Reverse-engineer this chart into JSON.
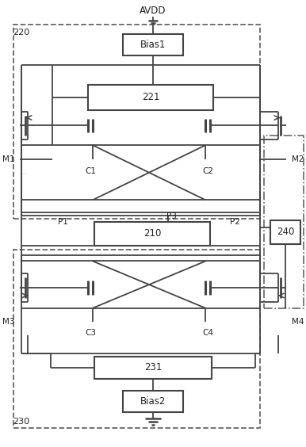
{
  "bg_color": "#ffffff",
  "line_color": "#444444",
  "dashed_color": "#666666",
  "avdd_label": "AVDD",
  "bias1_label": "Bias1",
  "bias2_label": "Bias2",
  "block221_label": "221",
  "block210_label": "210",
  "block231_label": "231",
  "block240_label": "240",
  "label_220": "220",
  "label_230": "230",
  "labels_M": [
    "M1",
    "M2",
    "M3",
    "M4"
  ],
  "labels_C": [
    "C1",
    "C2",
    "C3",
    "C4"
  ],
  "labels_P": [
    "P1",
    "P2",
    "P3"
  ],
  "figsize": [
    3.86,
    5.64
  ],
  "dpi": 100
}
